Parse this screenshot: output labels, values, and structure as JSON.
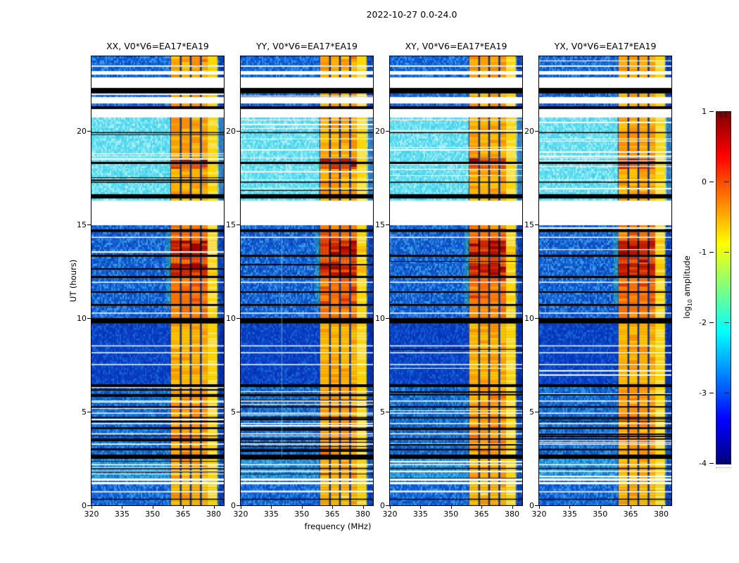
{
  "figure": {
    "title": "2022-10-27 0.0-24.0",
    "xlabel": "frequency (MHz)",
    "ylabel": "UT (hours)"
  },
  "panels": [
    {
      "id": "XX",
      "title": "XX, V0*V6=EA17*EA19"
    },
    {
      "id": "YY",
      "title": "YY, V0*V6=EA17*EA19"
    },
    {
      "id": "XY",
      "title": "XY, V0*V6=EA17*EA19"
    },
    {
      "id": "YX",
      "title": "YX, V0*V6=EA17*EA19"
    }
  ],
  "axes": {
    "x_ticks": [
      320,
      335,
      350,
      365,
      380
    ],
    "y_ticks": [
      20,
      15,
      10,
      5,
      0
    ],
    "x_range": [
      320,
      385
    ],
    "y_range": [
      0,
      24
    ]
  },
  "colorbar": {
    "ticks": [
      "1",
      "0",
      "-1",
      "-2",
      "-3",
      "-4"
    ],
    "range": [
      -4,
      1
    ],
    "colormap": "jet",
    "label_pre": "log",
    "label_sub": "10",
    "label_post": " amplitude"
  },
  "chart_data": {
    "type": "heatmap",
    "title": "2022-10-27 0.0-24.0",
    "xlabel": "frequency (MHz)",
    "ylabel": "UT (hours)",
    "zlabel": "log10 amplitude",
    "x_range": [
      320,
      385
    ],
    "y_range": [
      0,
      24
    ],
    "z_range": [
      -4,
      1
    ],
    "colormap": "jet",
    "n_panels": 4,
    "rfi_band": {
      "blocks": [
        [
          359,
          363.4
        ],
        [
          364.3,
          368.3
        ],
        [
          369.2,
          373.3
        ],
        [
          374.2,
          377.0
        ]
      ],
      "fringe": [
        377,
        381.8
      ],
      "edge_blue": [
        382.5,
        385
      ]
    },
    "yy_artifact_line_freq": 340,
    "segments": [
      {
        "kind": "blue2",
        "t0": 24.0,
        "t1": 23.51,
        "band": 0.75
      },
      {
        "kind": "white",
        "t0": 23.51,
        "t1": 23.44
      },
      {
        "kind": "blue2",
        "t0": 23.44,
        "t1": 23.21,
        "band": 0.75
      },
      {
        "kind": "white",
        "t0": 23.21,
        "t1": 23.02
      },
      {
        "kind": "blue2",
        "t0": 23.02,
        "t1": 22.87,
        "band": 0.7
      },
      {
        "kind": "white",
        "t0": 22.87,
        "t1": 22.31
      },
      {
        "kind": "black",
        "t0": 22.31,
        "t1": 22.01
      },
      {
        "kind": "blue2",
        "t0": 22.01,
        "t1": 21.82,
        "band": 0.7
      },
      {
        "kind": "white",
        "t0": 21.82,
        "t1": 21.48
      },
      {
        "kind": "blue2",
        "t0": 21.48,
        "t1": 21.33,
        "band": 0.7
      },
      {
        "kind": "black",
        "t0": 21.33,
        "t1": 21.18
      },
      {
        "kind": "white",
        "t0": 21.18,
        "t1": 20.73
      },
      {
        "kind": "cyan",
        "t0": 20.73,
        "t1": 18.55,
        "band": 0.72,
        "blines": [
          19.95
        ]
      },
      {
        "kind": "cyan",
        "t0": 18.55,
        "t1": 18.36,
        "band": 0.92
      },
      {
        "kind": "black",
        "t0": 18.36,
        "t1": 18.24
      },
      {
        "kind": "cyan",
        "t0": 18.24,
        "t1": 17.98,
        "band": 0.9
      },
      {
        "kind": "cyan",
        "t0": 17.98,
        "t1": 16.63,
        "band": 0.72,
        "blines": [
          17.3
        ]
      },
      {
        "kind": "black",
        "t0": 16.63,
        "t1": 16.4
      },
      {
        "kind": "cyan",
        "t0": 16.4,
        "t1": 16.29,
        "band": 0.7
      },
      {
        "kind": "white",
        "t0": 16.29,
        "t1": 14.97
      },
      {
        "kind": "blue2",
        "t0": 14.97,
        "t1": 14.75,
        "band": 0.8
      },
      {
        "kind": "black",
        "t0": 14.75,
        "t1": 14.6
      },
      {
        "kind": "blue",
        "t0": 14.6,
        "t1": 14.14,
        "band": 0.85,
        "wlines": [
          14.35
        ]
      },
      {
        "kind": "blue",
        "t0": 14.14,
        "t1": 13.39,
        "band": 1.0
      },
      {
        "kind": "black",
        "t0": 13.39,
        "t1": 13.28
      },
      {
        "kind": "blue",
        "t0": 13.28,
        "t1": 12.9,
        "band": 0.9
      },
      {
        "kind": "blue",
        "t0": 12.9,
        "t1": 12.26,
        "band": 1.0
      },
      {
        "kind": "black",
        "t0": 12.26,
        "t1": 12.15
      },
      {
        "kind": "blue",
        "t0": 12.15,
        "t1": 11.44,
        "band": 0.85,
        "wlines": [
          11.95
        ]
      },
      {
        "kind": "black",
        "t0": 11.44,
        "t1": 11.36
      },
      {
        "kind": "blue",
        "t0": 11.36,
        "t1": 10.76,
        "band": 0.85
      },
      {
        "kind": "black",
        "t0": 10.76,
        "t1": 10.65
      },
      {
        "kind": "blue",
        "t0": 10.65,
        "t1": 10.01,
        "band": 0.8,
        "wlines": [
          10.3
        ]
      },
      {
        "kind": "black",
        "t0": 10.01,
        "t1": 9.71
      },
      {
        "kind": "darkblue",
        "t0": 9.71,
        "t1": 6.47,
        "band": 0.7,
        "wlines": [
          8.55,
          8.18,
          7.55
        ]
      },
      {
        "kind": "black",
        "t0": 6.47,
        "t1": 6.32
      },
      {
        "kind": "striped",
        "t0": 6.32,
        "t1": 2.71,
        "band": 0.75,
        "wlines": [
          5.6,
          4.95,
          4.4,
          3.85,
          3.3
        ],
        "blines": [
          5.95,
          5.3,
          4.72,
          4.15,
          3.58,
          3.02
        ]
      },
      {
        "kind": "black",
        "t0": 2.71,
        "t1": 2.48
      },
      {
        "kind": "cyanblue",
        "t0": 2.48,
        "t1": 1.43,
        "band": 0.7,
        "wlines": [
          2.2,
          1.85
        ],
        "blines": [
          2.0
        ]
      },
      {
        "kind": "white",
        "t0": 1.43,
        "t1": 1.31
      },
      {
        "kind": "blue2",
        "t0": 1.31,
        "t1": 1.24,
        "band": 0.65
      },
      {
        "kind": "white",
        "t0": 1.24,
        "t1": 1.12
      },
      {
        "kind": "blue2",
        "t0": 1.12,
        "t1": 0.0,
        "band": 0.68,
        "wlines": [
          0.75
        ],
        "blines": [
          0.35
        ]
      }
    ]
  }
}
